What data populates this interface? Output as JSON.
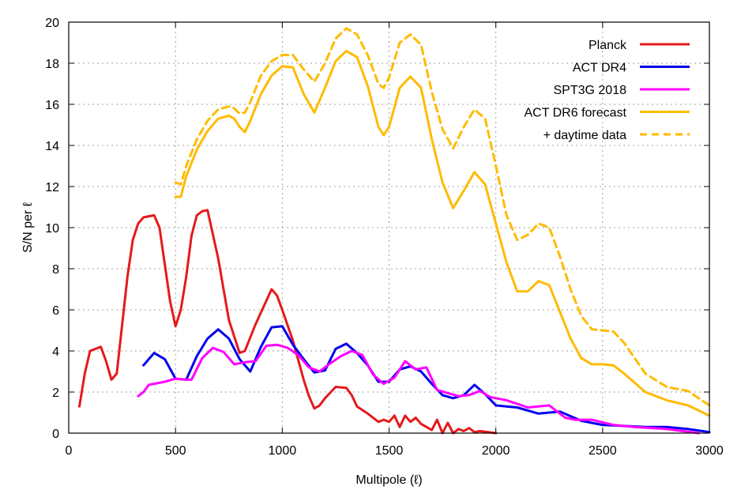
{
  "chart_data": {
    "type": "line",
    "title": "",
    "xlabel": "Multipole (ℓ)",
    "ylabel": "S/N per ℓ",
    "xlim": [
      0,
      3000
    ],
    "ylim": [
      0,
      20
    ],
    "xticks": [
      "0",
      "500",
      "1000",
      "1500",
      "2000",
      "2500",
      "3000"
    ],
    "yticks": [
      "0",
      "2",
      "4",
      "6",
      "8",
      "10",
      "12",
      "14",
      "16",
      "18",
      "20"
    ],
    "xtick_values": [
      0,
      500,
      1000,
      1500,
      2000,
      2500,
      3000
    ],
    "ytick_values": [
      0,
      2,
      4,
      6,
      8,
      10,
      12,
      14,
      16,
      18,
      20
    ],
    "grid": true,
    "legend_position": "top-right",
    "series": [
      {
        "name": "Planck",
        "color": "#e41a1c",
        "style": "solid",
        "points": [
          [
            50,
            1.3
          ],
          [
            75,
            2.9
          ],
          [
            100,
            4.0
          ],
          [
            150,
            4.2
          ],
          [
            175,
            3.5
          ],
          [
            200,
            2.6
          ],
          [
            225,
            2.9
          ],
          [
            275,
            7.6
          ],
          [
            300,
            9.4
          ],
          [
            325,
            10.2
          ],
          [
            350,
            10.5
          ],
          [
            400,
            10.6
          ],
          [
            425,
            10.0
          ],
          [
            475,
            6.4
          ],
          [
            500,
            5.2
          ],
          [
            525,
            6.0
          ],
          [
            550,
            7.6
          ],
          [
            575,
            9.6
          ],
          [
            600,
            10.6
          ],
          [
            625,
            10.8
          ],
          [
            650,
            10.85
          ],
          [
            700,
            8.5
          ],
          [
            750,
            5.5
          ],
          [
            800,
            3.9
          ],
          [
            825,
            4.0
          ],
          [
            875,
            5.3
          ],
          [
            950,
            7.0
          ],
          [
            975,
            6.7
          ],
          [
            1000,
            6.0
          ],
          [
            1050,
            4.5
          ],
          [
            1100,
            2.6
          ],
          [
            1125,
            1.8
          ],
          [
            1150,
            1.2
          ],
          [
            1175,
            1.35
          ],
          [
            1200,
            1.7
          ],
          [
            1250,
            2.25
          ],
          [
            1300,
            2.2
          ],
          [
            1325,
            1.85
          ],
          [
            1350,
            1.3
          ],
          [
            1400,
            0.95
          ],
          [
            1450,
            0.55
          ],
          [
            1475,
            0.65
          ],
          [
            1500,
            0.55
          ],
          [
            1525,
            0.85
          ],
          [
            1550,
            0.3
          ],
          [
            1575,
            0.85
          ],
          [
            1600,
            0.55
          ],
          [
            1625,
            0.75
          ],
          [
            1650,
            0.45
          ],
          [
            1700,
            0.15
          ],
          [
            1725,
            0.65
          ],
          [
            1750,
            0.0
          ],
          [
            1775,
            0.5
          ],
          [
            1800,
            0.0
          ],
          [
            1825,
            0.2
          ],
          [
            1850,
            0.1
          ],
          [
            1875,
            0.25
          ],
          [
            1900,
            0.05
          ],
          [
            1925,
            0.1
          ],
          [
            2000,
            0.0
          ]
        ]
      },
      {
        "name": "ACT DR4",
        "color": "#0000ee",
        "style": "solid",
        "points": [
          [
            350,
            3.3
          ],
          [
            400,
            3.9
          ],
          [
            450,
            3.6
          ],
          [
            500,
            2.65
          ],
          [
            550,
            2.6
          ],
          [
            600,
            3.75
          ],
          [
            650,
            4.6
          ],
          [
            700,
            5.05
          ],
          [
            750,
            4.6
          ],
          [
            800,
            3.6
          ],
          [
            850,
            3.0
          ],
          [
            900,
            4.2
          ],
          [
            950,
            5.15
          ],
          [
            1000,
            5.2
          ],
          [
            1050,
            4.3
          ],
          [
            1100,
            3.6
          ],
          [
            1150,
            2.95
          ],
          [
            1200,
            3.05
          ],
          [
            1250,
            4.1
          ],
          [
            1300,
            4.35
          ],
          [
            1350,
            3.9
          ],
          [
            1400,
            3.3
          ],
          [
            1450,
            2.5
          ],
          [
            1500,
            2.5
          ],
          [
            1550,
            3.1
          ],
          [
            1600,
            3.25
          ],
          [
            1650,
            3.0
          ],
          [
            1700,
            2.4
          ],
          [
            1750,
            1.85
          ],
          [
            1800,
            1.7
          ],
          [
            1850,
            1.85
          ],
          [
            1900,
            2.35
          ],
          [
            1950,
            1.9
          ],
          [
            2000,
            1.35
          ],
          [
            2050,
            1.3
          ],
          [
            2100,
            1.25
          ],
          [
            2200,
            0.95
          ],
          [
            2300,
            1.05
          ],
          [
            2400,
            0.6
          ],
          [
            2500,
            0.4
          ],
          [
            2600,
            0.35
          ],
          [
            2700,
            0.3
          ],
          [
            2800,
            0.3
          ],
          [
            2900,
            0.2
          ],
          [
            3000,
            0.05
          ]
        ]
      },
      {
        "name": "SPT3G 2018",
        "color": "#ff00ff",
        "style": "solid",
        "points": [
          [
            325,
            1.8
          ],
          [
            350,
            2.0
          ],
          [
            375,
            2.35
          ],
          [
            450,
            2.5
          ],
          [
            500,
            2.65
          ],
          [
            550,
            2.6
          ],
          [
            575,
            2.6
          ],
          [
            625,
            3.65
          ],
          [
            675,
            4.15
          ],
          [
            725,
            3.95
          ],
          [
            775,
            3.35
          ],
          [
            825,
            3.45
          ],
          [
            875,
            3.5
          ],
          [
            925,
            4.25
          ],
          [
            975,
            4.3
          ],
          [
            1025,
            4.15
          ],
          [
            1075,
            3.8
          ],
          [
            1125,
            3.2
          ],
          [
            1175,
            3.0
          ],
          [
            1225,
            3.4
          ],
          [
            1275,
            3.75
          ],
          [
            1325,
            4.0
          ],
          [
            1375,
            3.8
          ],
          [
            1425,
            2.85
          ],
          [
            1475,
            2.4
          ],
          [
            1525,
            2.7
          ],
          [
            1575,
            3.5
          ],
          [
            1625,
            3.1
          ],
          [
            1675,
            3.2
          ],
          [
            1725,
            2.1
          ],
          [
            1775,
            1.95
          ],
          [
            1825,
            1.8
          ],
          [
            1875,
            1.85
          ],
          [
            1925,
            2.05
          ],
          [
            1975,
            1.75
          ],
          [
            2050,
            1.6
          ],
          [
            2150,
            1.25
          ],
          [
            2250,
            1.35
          ],
          [
            2325,
            0.75
          ],
          [
            2375,
            0.65
          ],
          [
            2450,
            0.65
          ],
          [
            2550,
            0.4
          ],
          [
            2650,
            0.3
          ],
          [
            2800,
            0.2
          ],
          [
            2950,
            0.0
          ]
        ]
      },
      {
        "name": "ACT DR6 forecast",
        "color": "#ffbb00",
        "style": "solid",
        "points": [
          [
            500,
            11.5
          ],
          [
            525,
            11.5
          ],
          [
            550,
            12.5
          ],
          [
            600,
            13.8
          ],
          [
            650,
            14.7
          ],
          [
            700,
            15.3
          ],
          [
            750,
            15.45
          ],
          [
            775,
            15.3
          ],
          [
            800,
            14.9
          ],
          [
            825,
            14.65
          ],
          [
            850,
            15.2
          ],
          [
            900,
            16.5
          ],
          [
            950,
            17.4
          ],
          [
            1000,
            17.85
          ],
          [
            1050,
            17.8
          ],
          [
            1100,
            16.5
          ],
          [
            1150,
            15.6
          ],
          [
            1200,
            16.8
          ],
          [
            1250,
            18.1
          ],
          [
            1300,
            18.6
          ],
          [
            1350,
            18.3
          ],
          [
            1400,
            16.9
          ],
          [
            1450,
            14.9
          ],
          [
            1475,
            14.5
          ],
          [
            1500,
            14.9
          ],
          [
            1550,
            16.8
          ],
          [
            1600,
            17.35
          ],
          [
            1650,
            16.8
          ],
          [
            1700,
            14.3
          ],
          [
            1750,
            12.2
          ],
          [
            1800,
            10.95
          ],
          [
            1850,
            11.8
          ],
          [
            1900,
            12.7
          ],
          [
            1950,
            12.1
          ],
          [
            2000,
            10.2
          ],
          [
            2050,
            8.3
          ],
          [
            2100,
            6.9
          ],
          [
            2150,
            6.9
          ],
          [
            2200,
            7.4
          ],
          [
            2250,
            7.2
          ],
          [
            2300,
            5.9
          ],
          [
            2350,
            4.6
          ],
          [
            2400,
            3.65
          ],
          [
            2450,
            3.35
          ],
          [
            2500,
            3.35
          ],
          [
            2550,
            3.3
          ],
          [
            2600,
            2.9
          ],
          [
            2700,
            2.0
          ],
          [
            2800,
            1.6
          ],
          [
            2900,
            1.35
          ],
          [
            3000,
            0.85
          ]
        ]
      },
      {
        "name": "+ daytime data",
        "color": "#ffbb00",
        "style": "dashed",
        "points": [
          [
            500,
            12.2
          ],
          [
            525,
            12.1
          ],
          [
            550,
            13.0
          ],
          [
            600,
            14.3
          ],
          [
            650,
            15.2
          ],
          [
            700,
            15.75
          ],
          [
            750,
            15.9
          ],
          [
            775,
            15.8
          ],
          [
            800,
            15.55
          ],
          [
            825,
            15.6
          ],
          [
            850,
            16.1
          ],
          [
            900,
            17.4
          ],
          [
            950,
            18.1
          ],
          [
            1000,
            18.4
          ],
          [
            1050,
            18.4
          ],
          [
            1100,
            17.7
          ],
          [
            1150,
            17.1
          ],
          [
            1200,
            18.0
          ],
          [
            1250,
            19.2
          ],
          [
            1300,
            19.7
          ],
          [
            1350,
            19.4
          ],
          [
            1400,
            18.4
          ],
          [
            1450,
            17.0
          ],
          [
            1475,
            16.8
          ],
          [
            1500,
            17.3
          ],
          [
            1550,
            19.0
          ],
          [
            1600,
            19.4
          ],
          [
            1650,
            18.9
          ],
          [
            1700,
            16.6
          ],
          [
            1750,
            14.8
          ],
          [
            1800,
            13.85
          ],
          [
            1850,
            14.9
          ],
          [
            1900,
            15.75
          ],
          [
            1950,
            15.3
          ],
          [
            2000,
            13.0
          ],
          [
            2050,
            10.6
          ],
          [
            2100,
            9.4
          ],
          [
            2150,
            9.65
          ],
          [
            2200,
            10.2
          ],
          [
            2250,
            10.0
          ],
          [
            2300,
            8.6
          ],
          [
            2350,
            7.0
          ],
          [
            2400,
            5.7
          ],
          [
            2450,
            5.05
          ],
          [
            2500,
            5.0
          ],
          [
            2550,
            4.95
          ],
          [
            2600,
            4.4
          ],
          [
            2700,
            2.9
          ],
          [
            2800,
            2.25
          ],
          [
            2900,
            2.05
          ],
          [
            3000,
            1.35
          ]
        ]
      }
    ]
  }
}
